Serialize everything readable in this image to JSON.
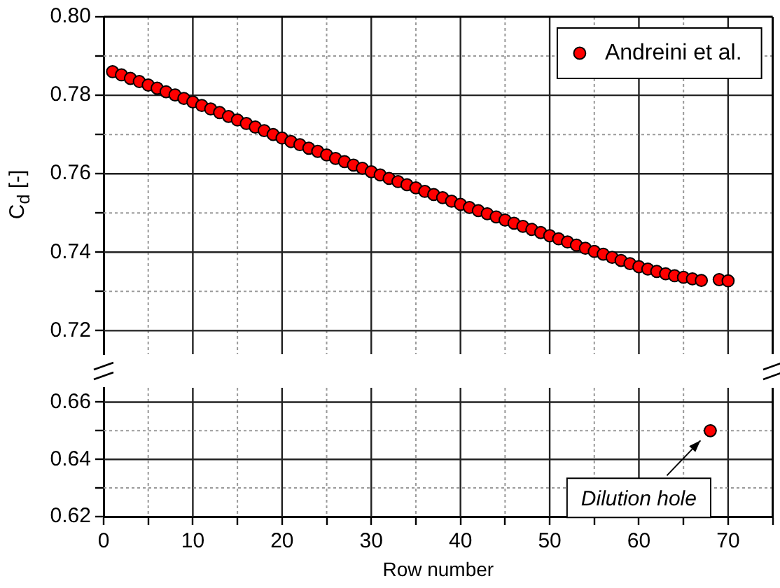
{
  "chart_data": [
    {
      "type": "scatter",
      "ylabel": "C$_{d}$ [-]",
      "legend": "top right",
      "marker": "circle",
      "grid": true,
      "tick_labels": "y",
      "xlim": [
        0,
        75
      ],
      "xticks": [
        0,
        {
          "value": 5,
          "label": null
        },
        10,
        {
          "value": 15,
          "label": null
        },
        20,
        {
          "value": 25,
          "label": null
        },
        30,
        {
          "value": 35,
          "label": null
        },
        40,
        {
          "value": 45,
          "label": null
        },
        50,
        {
          "value": 55,
          "label": null
        },
        60,
        {
          "value": 65,
          "label": null
        },
        70,
        {
          "value": 75,
          "label": null
        }
      ],
      "ylim": [
        0.714,
        0.8
      ],
      "yticks": [
        0.72,
        {
          "value": 0.73,
          "label": null
        },
        0.74,
        {
          "value": 0.75,
          "label": null
        },
        0.76,
        {
          "value": 0.77,
          "label": null
        },
        0.78,
        {
          "value": 0.79,
          "label": null
        },
        {
          "value": 0.8,
          "label": "0.80"
        }
      ],
      "series": [
        {
          "name": "Andreini et al.",
          "color": "#ff0000",
          "x": [
            1,
            2,
            3,
            4,
            5,
            6,
            7,
            8,
            9,
            10,
            11,
            12,
            13,
            14,
            15,
            16,
            17,
            18,
            19,
            20,
            21,
            22,
            23,
            24,
            25,
            26,
            27,
            28,
            29,
            30,
            31,
            32,
            33,
            34,
            35,
            36,
            37,
            38,
            39,
            40,
            41,
            42,
            43,
            44,
            45,
            46,
            47,
            48,
            49,
            50,
            51,
            52,
            53,
            54,
            55,
            56,
            57,
            58,
            59,
            60,
            61,
            62,
            63,
            64,
            65,
            66,
            67,
            69,
            70
          ],
          "values": [
            0.786,
            0.7852,
            0.7843,
            0.7835,
            0.7826,
            0.7818,
            0.7809,
            0.7801,
            0.7792,
            0.7783,
            0.7774,
            0.7765,
            0.7756,
            0.7746,
            0.7737,
            0.7728,
            0.7719,
            0.771,
            0.77,
            0.7691,
            0.7682,
            0.7674,
            0.7665,
            0.7657,
            0.7648,
            0.7639,
            0.7631,
            0.7622,
            0.7614,
            0.7605,
            0.7597,
            0.7588,
            0.758,
            0.7572,
            0.7564,
            0.7555,
            0.7547,
            0.7539,
            0.753,
            0.7522,
            0.7514,
            0.7506,
            0.7498,
            0.749,
            0.7482,
            0.7474,
            0.7466,
            0.7458,
            0.745,
            0.7442,
            0.7434,
            0.7426,
            0.7418,
            0.741,
            0.7402,
            0.7395,
            0.7387,
            0.7379,
            0.7371,
            0.7363,
            0.7357,
            0.7351,
            0.7345,
            0.734,
            0.7336,
            0.7332,
            0.7328,
            0.733,
            0.7327
          ]
        }
      ]
    },
    {
      "type": "scatter",
      "xlabel": "Row number",
      "marker": "circle",
      "grid": true,
      "xlim": [
        0,
        75
      ],
      "xticks": [
        0,
        {
          "value": 5,
          "label": null
        },
        10,
        {
          "value": 15,
          "label": null
        },
        20,
        {
          "value": 25,
          "label": null
        },
        30,
        {
          "value": 35,
          "label": null
        },
        40,
        {
          "value": 45,
          "label": null
        },
        50,
        {
          "value": 55,
          "label": null
        },
        60,
        {
          "value": 65,
          "label": null
        },
        70,
        {
          "value": 75,
          "label": null
        }
      ],
      "ylim": [
        0.62,
        0.665
      ],
      "yticks": [
        0.62,
        {
          "value": 0.63,
          "label": null
        },
        0.64,
        {
          "value": 0.65,
          "label": null
        },
        0.66
      ],
      "series": [
        {
          "color": "#ff0000",
          "x": [
            68
          ],
          "values": [
            0.65
          ]
        }
      ],
      "annotations": [
        {
          "text": "Dilution hole",
          "x": 68,
          "y": 0.65
        }
      ]
    }
  ]
}
